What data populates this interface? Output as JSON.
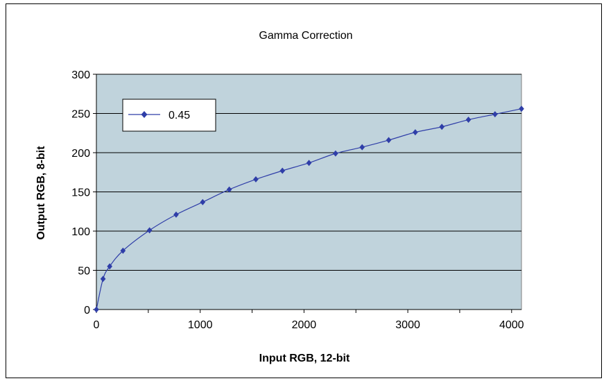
{
  "chart_data": {
    "type": "line",
    "title": "Gamma Correction",
    "xlabel": "Input RGB, 12-bit",
    "ylabel": "Output RGB, 8-bit",
    "xlim": [
      0,
      4095
    ],
    "ylim": [
      0,
      300
    ],
    "xticks": [
      0,
      1000,
      2000,
      3000,
      4000
    ],
    "yticks": [
      0,
      50,
      100,
      150,
      200,
      250,
      300
    ],
    "grid": "horizontal",
    "legend_position": "top-left",
    "series": [
      {
        "name": "0.45",
        "color": "#2f3ea8",
        "marker": "diamond",
        "x": [
          0,
          64,
          128,
          256,
          512,
          768,
          1024,
          1280,
          1536,
          1792,
          2048,
          2304,
          2560,
          2816,
          3072,
          3328,
          3584,
          3840,
          4095
        ],
        "values": [
          0,
          39,
          55,
          75,
          101,
          121,
          137,
          153,
          166,
          177,
          187,
          199,
          207,
          216,
          226,
          233,
          242,
          249,
          256
        ]
      }
    ]
  },
  "colors": {
    "plot_background": "#c0d3dc",
    "gridline": "#000000",
    "series": "#2f3ea8"
  }
}
